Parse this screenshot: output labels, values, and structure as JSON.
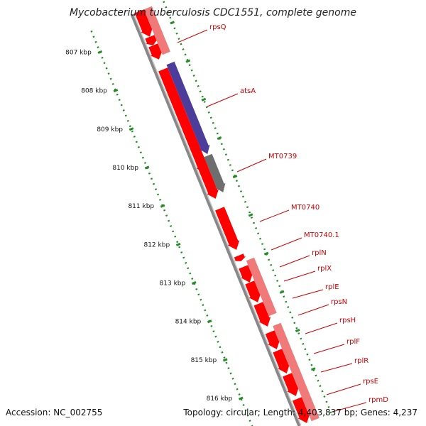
{
  "header": {
    "title": "Mycobacterium tuberculosis CDC1551, complete genome"
  },
  "footer": {
    "accession": "Accession: NC_002755",
    "topology": "Topology: circular; Length: 4,403,837 bp; Genes: 4,237"
  },
  "ticks": [
    {
      "label": "807 kbp",
      "t": 0.0
    },
    {
      "label": "808 kbp",
      "t": 0.1
    },
    {
      "label": "809 kbp",
      "t": 0.2
    },
    {
      "label": "810 kbp",
      "t": 0.3
    },
    {
      "label": "811 kbp",
      "t": 0.4
    },
    {
      "label": "812 kbp",
      "t": 0.5
    },
    {
      "label": "813 kbp",
      "t": 0.6
    },
    {
      "label": "814 kbp",
      "t": 0.7
    },
    {
      "label": "815 kbp",
      "t": 0.8
    },
    {
      "label": "816 kbp",
      "t": 0.9
    }
  ],
  "labels": [
    {
      "text": "rpsQ"
    },
    {
      "text": "atsA"
    },
    {
      "text": "MT0739"
    },
    {
      "text": "MT0740"
    },
    {
      "text": "MT0740.1"
    },
    {
      "text": "rplN"
    },
    {
      "text": "rplX"
    },
    {
      "text": "rplE"
    },
    {
      "text": "rpsN"
    },
    {
      "text": "rpsH"
    },
    {
      "text": "rplF"
    },
    {
      "text": "rplR"
    },
    {
      "text": "rpsE"
    },
    {
      "text": "rpmD"
    }
  ],
  "colors": {
    "gene": "#ff0000",
    "gene_light": "#f07a7a",
    "atsA": "#4b3d99",
    "MT0739": "#6e6e6e",
    "backbone": "#888888",
    "tick": "#2a8a2a",
    "dots": "#1a8a1a",
    "label": "#cc0000"
  }
}
